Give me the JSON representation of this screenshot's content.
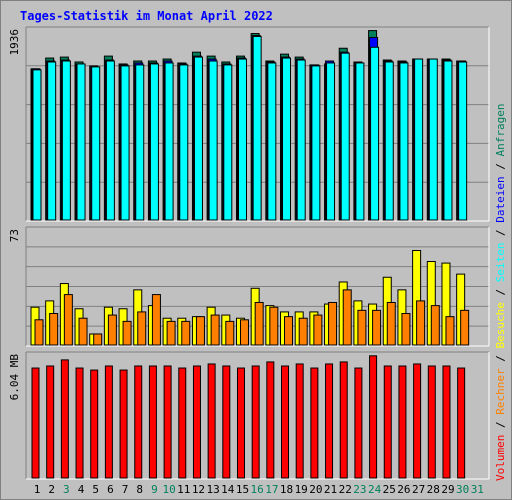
{
  "title": "Tages-Statistik im Monat April 2022",
  "colors": {
    "anfragen": "#00805c",
    "dateien": "#0000ff",
    "seiten": "#00ffff",
    "besuche": "#ffff00",
    "rechner": "#ff8000",
    "volumen": "#ff0000",
    "label_blue": "#0000ff",
    "label_green": "#00805c",
    "label_ranges": "#000000"
  },
  "legend": {
    "volumen": "Volumen",
    "rechner": "Rechner",
    "besuche": "Besuche",
    "seiten": "Seiten",
    "dateien": "Dateien",
    "anfragen": "Anfragen",
    "sep": "/"
  },
  "chart_data": [
    {
      "type": "bar",
      "name": "panel-top",
      "max_label": "1936",
      "ylim": [
        0,
        1936
      ],
      "categories": [
        "1",
        "2",
        "3",
        "4",
        "5",
        "6",
        "7",
        "8",
        "9",
        "10",
        "11",
        "12",
        "13",
        "14",
        "15",
        "16",
        "17",
        "18",
        "19",
        "20",
        "21",
        "22",
        "23",
        "24",
        "25",
        "26",
        "27",
        "28",
        "29",
        "30",
        "31"
      ],
      "series": [
        {
          "name": "Anfragen",
          "values": [
            1540,
            1650,
            1660,
            1610,
            1570,
            1670,
            1590,
            1620,
            1620,
            1640,
            1600,
            1710,
            1670,
            1610,
            1670,
            1900,
            1620,
            1690,
            1660,
            1580,
            1590,
            1750,
            1610,
            1930,
            1630,
            1620,
            1640,
            1640,
            1640,
            1620,
            0
          ]
        },
        {
          "name": "Dateien",
          "values": [
            1540,
            1620,
            1630,
            1590,
            1560,
            1630,
            1580,
            1600,
            1600,
            1620,
            1590,
            1670,
            1640,
            1590,
            1650,
            1880,
            1610,
            1660,
            1640,
            1580,
            1620,
            1710,
            1600,
            1860,
            1620,
            1610,
            1640,
            1640,
            1630,
            1620,
            0
          ]
        },
        {
          "name": "Seiten",
          "values": [
            1530,
            1610,
            1620,
            1590,
            1560,
            1620,
            1570,
            1580,
            1590,
            1600,
            1580,
            1660,
            1620,
            1580,
            1640,
            1870,
            1600,
            1650,
            1630,
            1570,
            1600,
            1700,
            1600,
            1760,
            1610,
            1600,
            1640,
            1640,
            1620,
            1610,
            0
          ]
        }
      ]
    },
    {
      "type": "bar",
      "name": "panel-middle",
      "max_label": "73",
      "ylim": [
        0,
        73
      ],
      "categories": [
        "1",
        "2",
        "3",
        "4",
        "5",
        "6",
        "7",
        "8",
        "9",
        "10",
        "11",
        "12",
        "13",
        "14",
        "15",
        "16",
        "17",
        "18",
        "19",
        "20",
        "21",
        "22",
        "23",
        "24",
        "25",
        "26",
        "27",
        "28",
        "29",
        "30",
        "31"
      ],
      "series": [
        {
          "name": "Besuche",
          "values": [
            24,
            28,
            39,
            23,
            7,
            24,
            23,
            35,
            25,
            17,
            17,
            18,
            24,
            19,
            17,
            36,
            25,
            21,
            21,
            21,
            26,
            40,
            28,
            26,
            43,
            35,
            60,
            53,
            52,
            45,
            0
          ]
        },
        {
          "name": "Rechner",
          "values": [
            16,
            20,
            32,
            17,
            7,
            19,
            15,
            21,
            32,
            15,
            15,
            18,
            19,
            15,
            16,
            27,
            24,
            18,
            17,
            19,
            27,
            35,
            22,
            22,
            27,
            20,
            28,
            25,
            18,
            22,
            0
          ]
        }
      ]
    },
    {
      "type": "bar",
      "name": "panel-bottom",
      "max_label": "6.04 MB",
      "ylim": [
        0,
        6.04
      ],
      "categories": [
        "1",
        "2",
        "3",
        "4",
        "5",
        "6",
        "7",
        "8",
        "9",
        "10",
        "11",
        "12",
        "13",
        "14",
        "15",
        "16",
        "17",
        "18",
        "19",
        "20",
        "21",
        "22",
        "23",
        "24",
        "25",
        "26",
        "27",
        "28",
        "29",
        "30",
        "31"
      ],
      "series": [
        {
          "name": "Volumen",
          "values": [
            5.4,
            5.5,
            5.8,
            5.4,
            5.3,
            5.5,
            5.3,
            5.5,
            5.5,
            5.5,
            5.4,
            5.5,
            5.6,
            5.5,
            5.4,
            5.5,
            5.7,
            5.5,
            5.6,
            5.4,
            5.6,
            5.7,
            5.4,
            6.0,
            5.5,
            5.5,
            5.6,
            5.5,
            5.5,
            5.4,
            0
          ]
        }
      ]
    }
  ],
  "day_label_colors": [
    "blue",
    "blue",
    "green",
    "blue",
    "blue",
    "blue",
    "blue",
    "blue",
    "green",
    "green",
    "blue",
    "blue",
    "blue",
    "blue",
    "blue",
    "green",
    "green",
    "blue",
    "blue",
    "blue",
    "blue",
    "blue",
    "green",
    "green",
    "blue",
    "blue",
    "blue",
    "blue",
    "blue",
    "green",
    "green"
  ]
}
